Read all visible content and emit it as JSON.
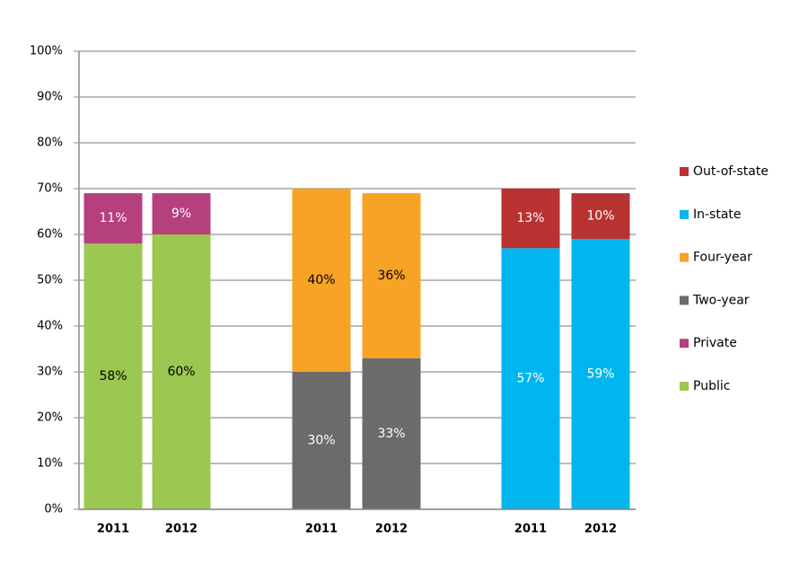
{
  "chart_data": {
    "type": "stacked_bar",
    "categories": [
      "2011",
      "2012",
      "2011",
      "2012",
      "2011",
      "2012"
    ],
    "series": [
      {
        "name": "Public",
        "color": "#9bc850",
        "values": [
          58,
          60,
          null,
          null,
          null,
          null
        ],
        "value_labels": [
          "58%",
          "60%",
          null,
          null,
          null,
          null
        ]
      },
      {
        "name": "Private",
        "color": "#b5407e",
        "values": [
          11,
          9,
          null,
          null,
          null,
          null
        ],
        "value_labels": [
          "11%",
          "9%",
          null,
          null,
          null,
          null
        ]
      },
      {
        "name": "Two-year",
        "color": "#6b6b6b",
        "values": [
          null,
          null,
          30,
          33,
          null,
          null
        ],
        "value_labels": [
          null,
          null,
          "30%",
          "33%",
          null,
          null
        ]
      },
      {
        "name": "Four-year",
        "color": "#f7a325",
        "values": [
          null,
          null,
          40,
          36,
          null,
          null
        ],
        "value_labels": [
          null,
          null,
          "40%",
          "36%",
          null,
          null
        ]
      },
      {
        "name": "In-state",
        "color": "#00b6ef",
        "values": [
          null,
          null,
          null,
          null,
          57,
          59
        ],
        "value_labels": [
          null,
          null,
          null,
          null,
          "57%",
          "59%"
        ]
      },
      {
        "name": "Out-of-state",
        "color": "#b83232",
        "values": [
          null,
          null,
          null,
          null,
          13,
          10
        ],
        "value_labels": [
          null,
          null,
          null,
          null,
          "13%",
          "10%"
        ]
      }
    ],
    "ylim": [
      0,
      100
    ],
    "yticks": [
      {
        "value": 0,
        "label": "0%"
      },
      {
        "value": 10,
        "label": "10%"
      },
      {
        "value": 20,
        "label": "20%"
      },
      {
        "value": 30,
        "label": "30%"
      },
      {
        "value": 40,
        "label": "40%"
      },
      {
        "value": 50,
        "label": "50%"
      },
      {
        "value": 60,
        "label": "60%"
      },
      {
        "value": 70,
        "label": "70%"
      },
      {
        "value": 80,
        "label": "80%"
      },
      {
        "value": 90,
        "label": "90%"
      },
      {
        "value": 100,
        "label": "100%"
      }
    ],
    "grid": true,
    "legend": "right"
  }
}
